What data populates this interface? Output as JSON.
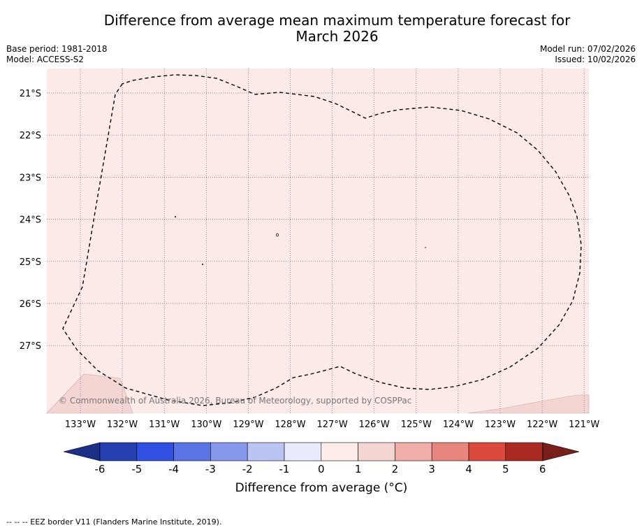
{
  "title": {
    "line1": "Difference from average mean maximum temperature forecast for",
    "line2": "March 2026"
  },
  "meta": {
    "base_period": "Base period: 1981-2018",
    "model": "Model: ACCESS-S2",
    "model_run": "Model run: 07/02/2026",
    "issued": "Issued: 10/02/2026"
  },
  "map": {
    "lon_labels": [
      "133°W",
      "132°W",
      "131°W",
      "130°W",
      "129°W",
      "128°W",
      "127°W",
      "126°W",
      "125°W",
      "124°W",
      "123°W",
      "122°W",
      "121°W"
    ],
    "lat_labels": [
      "21°S",
      "22°S",
      "23°S",
      "24°S",
      "25°S",
      "26°S",
      "27°S"
    ],
    "copyright": "© Commonwealth of Australia 2026, Bureau of Meteorology, supported by COSPPac",
    "background_color": "#fbeae8",
    "warm_patch_color": "#f3d6d3"
  },
  "colorbar": {
    "labels": [
      "-6",
      "-5",
      "-4",
      "-3",
      "-2",
      "-1",
      "0",
      "1",
      "2",
      "3",
      "4",
      "5",
      "6"
    ],
    "colors": [
      "#2540b0",
      "#2f50e0",
      "#5a74e6",
      "#8797ec",
      "#bcc4f4",
      "#e8ebfb",
      "#fcecea",
      "#f4d5d2",
      "#efaea8",
      "#e8867e",
      "#dc4a3e",
      "#ab2b24"
    ],
    "low_extend_color": "#1b2f86",
    "high_extend_color": "#7a1e1a",
    "title": "Difference from average (°C)"
  },
  "footnote": "--  --  -- EEZ border V11 (Flanders Marine Institute, 2019)."
}
